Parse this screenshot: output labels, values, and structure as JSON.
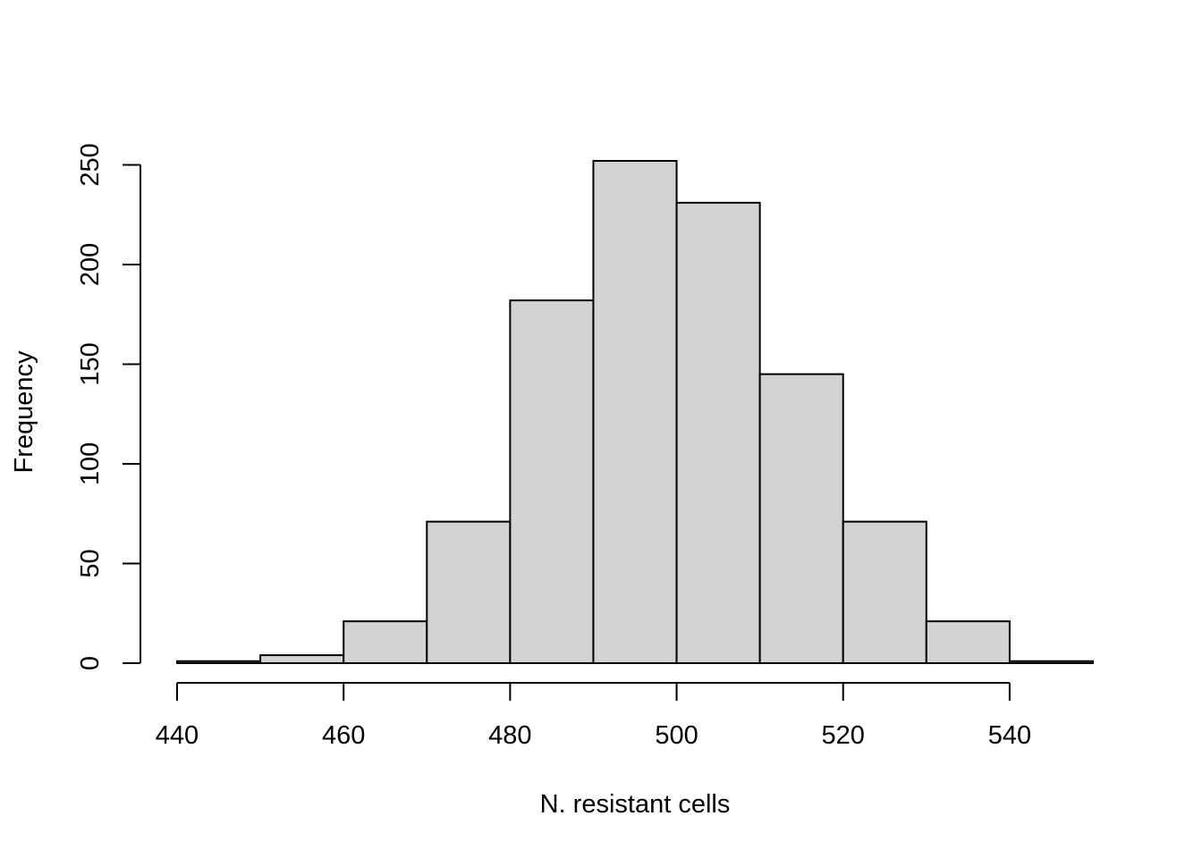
{
  "chart_data": {
    "type": "bar",
    "title": "",
    "xlabel": "N. resistant cells",
    "ylabel": "Frequency",
    "bins": [
      {
        "x0": 440,
        "x1": 450,
        "count": 1
      },
      {
        "x0": 450,
        "x1": 460,
        "count": 4
      },
      {
        "x0": 460,
        "x1": 470,
        "count": 21
      },
      {
        "x0": 470,
        "x1": 480,
        "count": 71
      },
      {
        "x0": 480,
        "x1": 490,
        "count": 182
      },
      {
        "x0": 490,
        "x1": 500,
        "count": 252
      },
      {
        "x0": 500,
        "x1": 510,
        "count": 231
      },
      {
        "x0": 510,
        "x1": 520,
        "count": 145
      },
      {
        "x0": 520,
        "x1": 530,
        "count": 71
      },
      {
        "x0": 530,
        "x1": 540,
        "count": 21
      },
      {
        "x0": 540,
        "x1": 550,
        "count": 1
      }
    ],
    "xlim": [
      440,
      550
    ],
    "ylim": [
      0,
      252
    ],
    "x_ticks": [
      440,
      460,
      480,
      500,
      520,
      540
    ],
    "x_tick_labels": [
      "440",
      "460",
      "480",
      "500",
      "520",
      "540"
    ],
    "y_ticks": [
      0,
      50,
      100,
      150,
      200,
      250
    ],
    "y_tick_labels": [
      "0",
      "50",
      "100",
      "150",
      "200",
      "250"
    ],
    "grid": false,
    "colors": {
      "bar_fill": "#d3d3d3",
      "bar_stroke": "#000000",
      "axis": "#000000"
    }
  }
}
